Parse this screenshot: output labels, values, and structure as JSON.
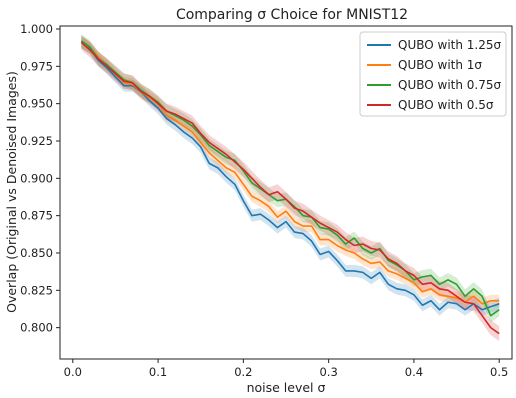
{
  "chart_data": {
    "type": "line",
    "title": "Comparing σ Choice for MNIST12",
    "xlabel": "noise level σ",
    "ylabel": "Overlap (Original vs Denoised Images)",
    "xlim": [
      -0.015,
      0.515
    ],
    "ylim": [
      0.779,
      1.002
    ],
    "xticks": [
      0.0,
      0.1,
      0.2,
      0.3,
      0.4,
      0.5
    ],
    "xtick_labels": [
      "0.0",
      "0.1",
      "0.2",
      "0.3",
      "0.4",
      "0.5"
    ],
    "yticks": [
      0.8,
      0.825,
      0.85,
      0.875,
      0.9,
      0.925,
      0.95,
      0.975,
      1.0
    ],
    "ytick_labels": [
      "0.800",
      "0.825",
      "0.850",
      "0.875",
      "0.900",
      "0.925",
      "0.950",
      "0.975",
      "1.000"
    ],
    "grid": false,
    "legend_position": "top-right",
    "x": [
      0.01,
      0.02,
      0.03,
      0.04,
      0.05,
      0.06,
      0.07,
      0.08,
      0.09,
      0.1,
      0.11,
      0.12,
      0.13,
      0.14,
      0.15,
      0.16,
      0.17,
      0.18,
      0.19,
      0.2,
      0.21,
      0.22,
      0.23,
      0.24,
      0.25,
      0.26,
      0.27,
      0.28,
      0.29,
      0.3,
      0.31,
      0.32,
      0.33,
      0.34,
      0.35,
      0.36,
      0.37,
      0.38,
      0.39,
      0.4,
      0.41,
      0.42,
      0.43,
      0.44,
      0.45,
      0.46,
      0.47,
      0.48,
      0.49,
      0.5
    ],
    "series": [
      {
        "name": "QUBO with 1.25σ",
        "color": "#1f77b4",
        "band": 0.004,
        "values": [
          0.991,
          0.987,
          0.979,
          0.974,
          0.968,
          0.962,
          0.962,
          0.958,
          0.952,
          0.947,
          0.94,
          0.936,
          0.931,
          0.927,
          0.921,
          0.91,
          0.907,
          0.901,
          0.896,
          0.885,
          0.875,
          0.876,
          0.872,
          0.867,
          0.871,
          0.864,
          0.863,
          0.858,
          0.849,
          0.851,
          0.845,
          0.838,
          0.838,
          0.837,
          0.833,
          0.837,
          0.829,
          0.826,
          0.825,
          0.822,
          0.815,
          0.818,
          0.812,
          0.817,
          0.816,
          0.812,
          0.816,
          0.812,
          0.814,
          0.816
        ]
      },
      {
        "name": "QUBO with 1σ",
        "color": "#ff7f0e",
        "band": 0.004,
        "values": [
          0.991,
          0.988,
          0.981,
          0.976,
          0.97,
          0.964,
          0.963,
          0.958,
          0.954,
          0.95,
          0.942,
          0.939,
          0.935,
          0.931,
          0.924,
          0.917,
          0.912,
          0.907,
          0.904,
          0.896,
          0.888,
          0.885,
          0.881,
          0.874,
          0.878,
          0.871,
          0.868,
          0.868,
          0.859,
          0.859,
          0.855,
          0.852,
          0.85,
          0.846,
          0.843,
          0.844,
          0.838,
          0.836,
          0.833,
          0.83,
          0.824,
          0.826,
          0.822,
          0.821,
          0.82,
          0.817,
          0.821,
          0.816,
          0.818,
          0.818
        ]
      },
      {
        "name": "QUBO with 0.75σ",
        "color": "#2ca02c",
        "band": 0.0045,
        "values": [
          0.992,
          0.988,
          0.98,
          0.976,
          0.971,
          0.966,
          0.964,
          0.959,
          0.955,
          0.951,
          0.945,
          0.942,
          0.939,
          0.935,
          0.929,
          0.922,
          0.918,
          0.914,
          0.912,
          0.905,
          0.897,
          0.893,
          0.889,
          0.885,
          0.886,
          0.881,
          0.875,
          0.874,
          0.867,
          0.866,
          0.862,
          0.856,
          0.86,
          0.853,
          0.85,
          0.853,
          0.845,
          0.842,
          0.838,
          0.832,
          0.834,
          0.835,
          0.829,
          0.832,
          0.829,
          0.821,
          0.826,
          0.821,
          0.808,
          0.812
        ]
      },
      {
        "name": "QUBO with 0.5σ",
        "color": "#d62728",
        "band": 0.005,
        "values": [
          0.991,
          0.986,
          0.98,
          0.975,
          0.97,
          0.965,
          0.964,
          0.958,
          0.955,
          0.95,
          0.945,
          0.943,
          0.94,
          0.937,
          0.93,
          0.924,
          0.92,
          0.916,
          0.911,
          0.906,
          0.9,
          0.894,
          0.889,
          0.891,
          0.886,
          0.88,
          0.878,
          0.874,
          0.87,
          0.867,
          0.864,
          0.859,
          0.855,
          0.856,
          0.853,
          0.852,
          0.846,
          0.843,
          0.838,
          0.835,
          0.829,
          0.83,
          0.826,
          0.825,
          0.821,
          0.817,
          0.816,
          0.808,
          0.8,
          0.796
        ]
      }
    ]
  }
}
